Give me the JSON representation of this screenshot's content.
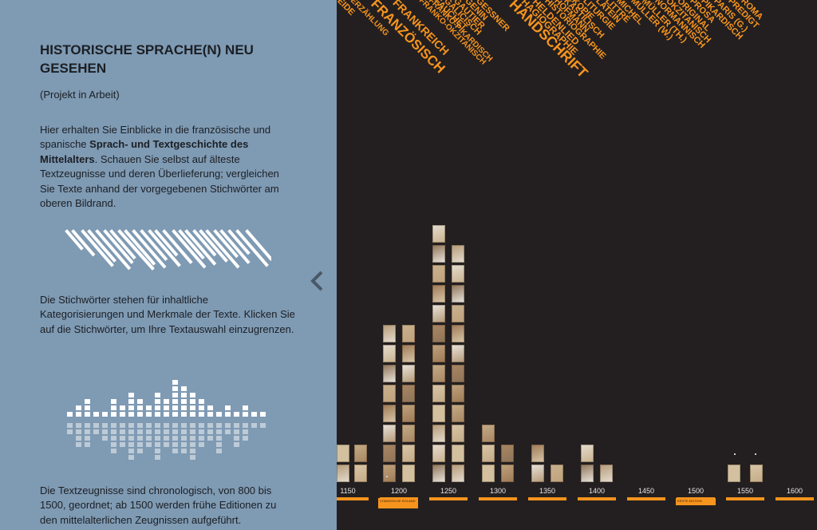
{
  "sidebar": {
    "title": "HISTORISCHE SPRACHE(N) NEU GESEHEN",
    "subtitle": "(Projekt in Arbeit)",
    "intro_pre": "Hier erhalten Sie Einblicke in die französische und spanische ",
    "intro_bold": "Sprach- und Textgeschichte des Mittelalters",
    "intro_post": ". Schauen Sie selbst auf älteste Textzeugnisse und deren Überlieferung; vergleichen Sie Texte anhand der vorgegebenen Stichwörter am oberen Bildrand.",
    "keywords_text": "Die Stichwörter stehen für inhaltliche Kategorisierungen und Merkmale der Texte. Klicken Sie auf die Stichwörter, um Ihre Textauswahl einzugrenzen.",
    "chrono_text": "Die Textzeugnisse sind chronologisch, von 800 bis 1500, geordnet; ab 1500 werden frühe Editionen zu den mittelalterlichen Zeugnissen aufgeführt.",
    "collapse_icon": "chevron-left-icon"
  },
  "tags": [
    "D",
    "EIDE",
    "ERZÄHLUNG",
    "FRANZÖSISCH",
    "FRANKREICH",
    "FRANKO-OKZITANISCH",
    "FRANKO-PIKARDISCH",
    "FAUCHET",
    "GALICISCH",
    "GAUTIER",
    "GENIN",
    "GESSNER",
    "HANDSCHRIFT",
    "HAGIOGRAPHIE",
    "HELDENLIED",
    "HISTORIOGRAPHIE",
    "HOFMANN",
    "KASTILISCH",
    "KOPIE",
    "LITURGIE",
    "LATEIN",
    "LITTRÉ",
    "MICHEL",
    "MÜLLER (W.)",
    "MÜLLER (TH.)",
    "NORMANNISCH",
    "OKZITANISCH",
    "ORIGINAL",
    "PROSA",
    "PIKARDISCH",
    "PARIS (G.)",
    "PREDIGT",
    "ROMA"
  ],
  "timeline": {
    "years": [
      "1150",
      "1200",
      "1250",
      "1300",
      "1350",
      "1400",
      "1450",
      "1500",
      "1550",
      "1600"
    ],
    "highlight_1200": "CHANSON DE ROLAND",
    "highlight_1500": "ERSTE EDITION"
  },
  "colors": {
    "accent": "#f7941d",
    "sidebar": "#7f9ab3",
    "background": "#231f20"
  }
}
